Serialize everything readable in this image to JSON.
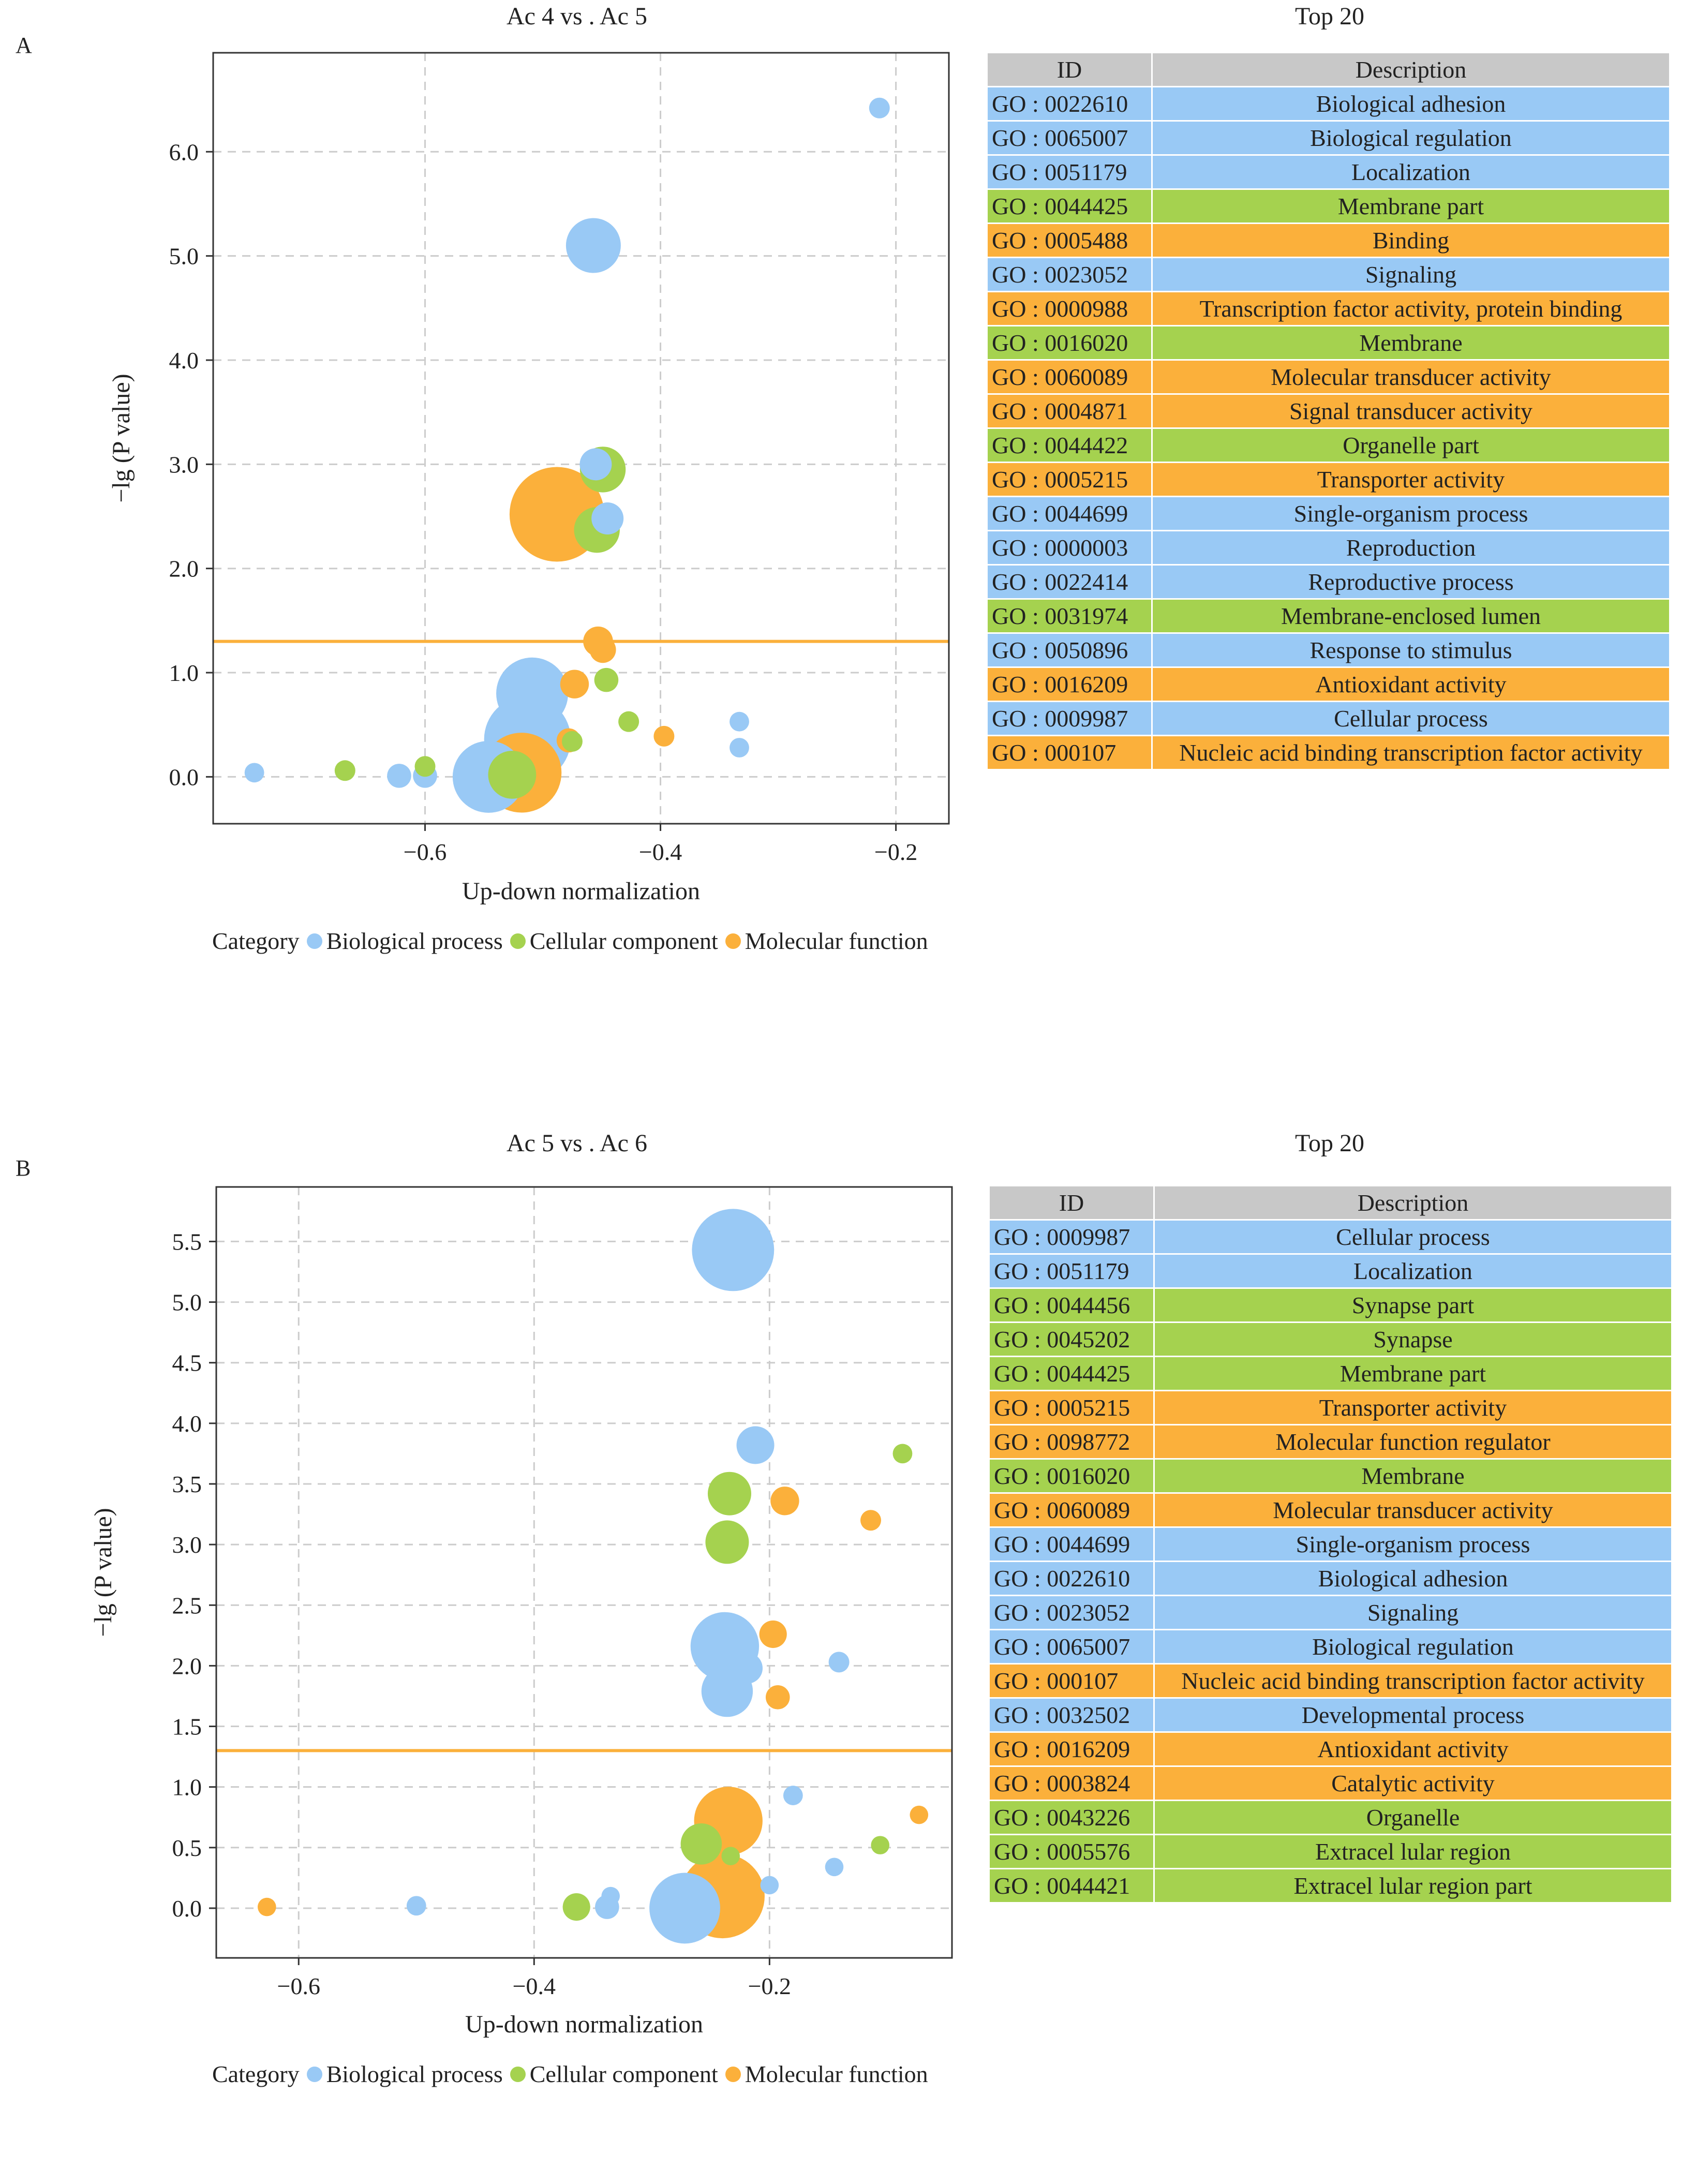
{
  "colors": {
    "Biological process": "#99c9f5",
    "Cellular component": "#a5d24f",
    "Molecular function": "#fbb03b",
    "threshold": "#fbb03b",
    "header": "#c8c8c8",
    "grid": "#cccccc"
  },
  "panels": [
    {
      "letter": "A",
      "title": "Ac 4  vs . Ac 5",
      "table_title": "Top  20",
      "table_header": {
        "id": "ID",
        "description": "Description"
      },
      "legend": {
        "label": "Category",
        "items": [
          "Biological process",
          "Cellular  component",
          "Molecular  function"
        ]
      },
      "table_rows": [
        {
          "id": "GO : 0022610",
          "description": "Biological  adhesion",
          "category": "Biological process"
        },
        {
          "id": "GO : 0065007",
          "description": "Biological  regulation",
          "category": "Biological process"
        },
        {
          "id": "GO : 0051179",
          "description": "Localization",
          "category": "Biological process"
        },
        {
          "id": "GO : 0044425",
          "description": "Membrane  part",
          "category": "Cellular component"
        },
        {
          "id": "GO : 0005488",
          "description": "Binding",
          "category": "Molecular function"
        },
        {
          "id": "GO : 0023052",
          "description": "Signaling",
          "category": "Biological process"
        },
        {
          "id": "GO : 0000988",
          "description": "Transcription  factor activity, protein  binding",
          "category": "Molecular function"
        },
        {
          "id": "GO : 0016020",
          "description": "Membrane",
          "category": "Cellular component"
        },
        {
          "id": "GO : 0060089",
          "description": "Molecular  transducer   activity",
          "category": "Molecular function"
        },
        {
          "id": "GO : 0004871",
          "description": "Signal  transducer  activity",
          "category": "Molecular function"
        },
        {
          "id": "GO : 0044422",
          "description": "Organelle  part",
          "category": "Cellular component"
        },
        {
          "id": "GO : 0005215",
          "description": "Transporter  activity",
          "category": "Molecular function"
        },
        {
          "id": "GO : 0044699",
          "description": "Single-organism  process",
          "category": "Biological process"
        },
        {
          "id": "GO : 0000003",
          "description": "Reproduction",
          "category": "Biological process"
        },
        {
          "id": "GO : 0022414",
          "description": "Reproductive  process",
          "category": "Biological process"
        },
        {
          "id": "GO : 0031974",
          "description": "Membrane-enclosed  lumen",
          "category": "Cellular component"
        },
        {
          "id": "GO : 0050896",
          "description": "Response  to  stimulus",
          "category": "Biological process"
        },
        {
          "id": "GO : 0016209",
          "description": "Antioxidant  activity",
          "category": "Molecular function"
        },
        {
          "id": "GO : 0009987",
          "description": "Cellular  process",
          "category": "Biological process"
        },
        {
          "id": "GO : 000107",
          "description": "Nucleic acid  binding  transcription  factor activity",
          "category": "Molecular function"
        }
      ],
      "chart_data": {
        "type": "scatter",
        "title": "Ac 4  vs . Ac 5",
        "xlabel": "Up-down   normalization",
        "ylabel": "−lg (P value)",
        "xlim": [
          -0.78,
          -0.155
        ],
        "ylim": [
          -0.45,
          6.95
        ],
        "xticks": [
          -0.6,
          -0.4,
          -0.2
        ],
        "xtick_labels": [
          "−0.6",
          "−0.4",
          "−0.2"
        ],
        "yticks": [
          0.0,
          1.0,
          2.0,
          3.0,
          4.0,
          5.0,
          6.0
        ],
        "ytick_labels": [
          "0.0",
          "1.0",
          "2.0",
          "3.0",
          "4.0",
          "5.0",
          "6.0"
        ],
        "threshold": 1.3,
        "grid": true,
        "size_unit": "relative bubble size",
        "points": [
          {
            "x": -0.214,
            "y": 6.42,
            "size": 1,
            "category": "Biological process"
          },
          {
            "x": -0.457,
            "y": 5.1,
            "size": 4,
            "category": "Biological process"
          },
          {
            "x": -0.455,
            "y": 3.0,
            "size": 2,
            "category": "Biological process"
          },
          {
            "x": -0.449,
            "y": 2.95,
            "size": 3.2,
            "category": "Cellular component"
          },
          {
            "x": -0.445,
            "y": 2.48,
            "size": 2,
            "category": "Biological process"
          },
          {
            "x": -0.488,
            "y": 2.52,
            "size": 7.5,
            "category": "Molecular function"
          },
          {
            "x": -0.454,
            "y": 2.37,
            "size": 3.2,
            "category": "Cellular component"
          },
          {
            "x": -0.453,
            "y": 1.3,
            "size": 1.8,
            "category": "Molecular function"
          },
          {
            "x": -0.449,
            "y": 1.22,
            "size": 1.5,
            "category": "Molecular function"
          },
          {
            "x": -0.473,
            "y": 0.89,
            "size": 1.7,
            "category": "Molecular function"
          },
          {
            "x": -0.446,
            "y": 0.93,
            "size": 1.3,
            "category": "Cellular component"
          },
          {
            "x": -0.427,
            "y": 0.53,
            "size": 1,
            "category": "Cellular component"
          },
          {
            "x": -0.397,
            "y": 0.39,
            "size": 1,
            "category": "Molecular function"
          },
          {
            "x": -0.333,
            "y": 0.53,
            "size": 0.9,
            "category": "Biological process"
          },
          {
            "x": -0.333,
            "y": 0.28,
            "size": 0.9,
            "category": "Biological process"
          },
          {
            "x": -0.509,
            "y": 0.8,
            "size": 5.5,
            "category": "Biological process"
          },
          {
            "x": -0.513,
            "y": 0.36,
            "size": 6.8,
            "category": "Biological process"
          },
          {
            "x": -0.478,
            "y": 0.35,
            "size": 1.3,
            "category": "Molecular function"
          },
          {
            "x": -0.475,
            "y": 0.34,
            "size": 1,
            "category": "Cellular component"
          },
          {
            "x": -0.518,
            "y": 0.04,
            "size": 6.2,
            "category": "Molecular function"
          },
          {
            "x": -0.526,
            "y": 0.02,
            "size": 3.4,
            "category": "Cellular component"
          },
          {
            "x": -0.546,
            "y": 0.0,
            "size": 5.5,
            "category": "Biological process"
          },
          {
            "x": -0.745,
            "y": 0.04,
            "size": 0.9,
            "category": "Biological process"
          },
          {
            "x": -0.668,
            "y": 0.06,
            "size": 1,
            "category": "Cellular component"
          },
          {
            "x": -0.622,
            "y": 0.01,
            "size": 1.3,
            "category": "Biological process"
          },
          {
            "x": -0.6,
            "y": 0.01,
            "size": 1.3,
            "category": "Biological process"
          },
          {
            "x": -0.6,
            "y": 0.1,
            "size": 1,
            "category": "Cellular component"
          }
        ]
      }
    },
    {
      "letter": "B",
      "title": "Ac 5  vs . Ac 6",
      "table_title": "Top  20",
      "table_header": {
        "id": "ID",
        "description": "Description"
      },
      "legend": {
        "label": "Category",
        "items": [
          "Biological process",
          "Cellular  component",
          "Molecular  function"
        ]
      },
      "table_rows": [
        {
          "id": "GO : 0009987",
          "description": "Cellular  process",
          "category": "Biological process"
        },
        {
          "id": "GO : 0051179",
          "description": "Localization",
          "category": "Biological process"
        },
        {
          "id": "GO : 0044456",
          "description": "Synapse  part",
          "category": "Cellular component"
        },
        {
          "id": "GO : 0045202",
          "description": "Synapse",
          "category": "Cellular component"
        },
        {
          "id": "GO : 0044425",
          "description": "Membrane  part",
          "category": "Cellular component"
        },
        {
          "id": "GO : 0005215",
          "description": "Transporter  activity",
          "category": "Molecular function"
        },
        {
          "id": "GO : 0098772",
          "description": "Molecular  function  regulator",
          "category": "Molecular function"
        },
        {
          "id": "GO : 0016020",
          "description": "Membrane",
          "category": "Cellular component"
        },
        {
          "id": "GO : 0060089",
          "description": "Molecular  transducer   activity",
          "category": "Molecular function"
        },
        {
          "id": "GO : 0044699",
          "description": "Single-organism  process",
          "category": "Biological process"
        },
        {
          "id": "GO : 0022610",
          "description": "Biological  adhesion",
          "category": "Biological process"
        },
        {
          "id": "GO : 0023052",
          "description": "Signaling",
          "category": "Biological process"
        },
        {
          "id": "GO : 0065007",
          "description": "Biological  regulation",
          "category": "Biological process"
        },
        {
          "id": "GO : 000107",
          "description": "Nucleic acid  binding  transcription  factor activity",
          "category": "Molecular function"
        },
        {
          "id": "GO : 0032502",
          "description": "Developmental  process",
          "category": "Biological process"
        },
        {
          "id": "GO : 0016209",
          "description": "Antioxidant  activity",
          "category": "Molecular function"
        },
        {
          "id": "GO : 0003824",
          "description": "Catalytic  activity",
          "category": "Molecular function"
        },
        {
          "id": "GO : 0043226",
          "description": "Organelle",
          "category": "Cellular component"
        },
        {
          "id": "GO : 0005576",
          "description": "Extracel lular  region",
          "category": "Cellular component"
        },
        {
          "id": "GO : 0044421",
          "description": "Extracel lular  region  part",
          "category": "Cellular component"
        }
      ],
      "chart_data": {
        "type": "scatter",
        "title": "Ac 5  vs . Ac 6",
        "xlabel": "Up-down   normalization",
        "ylabel": "−lg (P value)",
        "xlim": [
          -0.67,
          -0.045
        ],
        "ylim": [
          -0.41,
          5.95
        ],
        "xticks": [
          -0.6,
          -0.4,
          -0.2
        ],
        "xtick_labels": [
          "−0.6",
          "−0.4",
          "−0.2"
        ],
        "yticks": [
          0.0,
          0.5,
          1.0,
          1.5,
          2.0,
          2.5,
          3.0,
          3.5,
          4.0,
          4.5,
          5.0,
          5.5
        ],
        "ytick_labels": [
          "0.0",
          "0.5",
          "1.0",
          "1.5",
          "2.0",
          "2.5",
          "3.0",
          "3.5",
          "4.0",
          "4.5",
          "5.0",
          "5.5"
        ],
        "threshold": 1.3,
        "grid": true,
        "size_unit": "relative bubble size",
        "points": [
          {
            "x": -0.231,
            "y": 5.43,
            "size": 6.4,
            "category": "Biological process"
          },
          {
            "x": -0.212,
            "y": 3.82,
            "size": 2.5,
            "category": "Biological process"
          },
          {
            "x": -0.087,
            "y": 3.75,
            "size": 0.9,
            "category": "Cellular component"
          },
          {
            "x": -0.234,
            "y": 3.42,
            "size": 3,
            "category": "Cellular component"
          },
          {
            "x": -0.187,
            "y": 3.36,
            "size": 1.7,
            "category": "Molecular function"
          },
          {
            "x": -0.236,
            "y": 3.02,
            "size": 3,
            "category": "Cellular component"
          },
          {
            "x": -0.114,
            "y": 3.2,
            "size": 1,
            "category": "Molecular function"
          },
          {
            "x": -0.197,
            "y": 2.26,
            "size": 1.6,
            "category": "Molecular function"
          },
          {
            "x": -0.238,
            "y": 2.16,
            "size": 5.2,
            "category": "Biological process"
          },
          {
            "x": -0.219,
            "y": 1.98,
            "size": 1.9,
            "category": "Biological process"
          },
          {
            "x": -0.141,
            "y": 2.03,
            "size": 1,
            "category": "Biological process"
          },
          {
            "x": -0.236,
            "y": 1.79,
            "size": 3.7,
            "category": "Biological process"
          },
          {
            "x": -0.193,
            "y": 1.74,
            "size": 1.3,
            "category": "Molecular function"
          },
          {
            "x": -0.073,
            "y": 0.77,
            "size": 0.8,
            "category": "Molecular function"
          },
          {
            "x": -0.18,
            "y": 0.93,
            "size": 0.9,
            "category": "Biological process"
          },
          {
            "x": -0.235,
            "y": 0.72,
            "size": 5.2,
            "category": "Molecular function"
          },
          {
            "x": -0.258,
            "y": 0.53,
            "size": 2.8,
            "category": "Cellular component"
          },
          {
            "x": -0.106,
            "y": 0.52,
            "size": 0.8,
            "category": "Cellular component"
          },
          {
            "x": -0.233,
            "y": 0.43,
            "size": 0.8,
            "category": "Cellular component"
          },
          {
            "x": -0.145,
            "y": 0.34,
            "size": 0.8,
            "category": "Biological process"
          },
          {
            "x": -0.2,
            "y": 0.19,
            "size": 0.8,
            "category": "Biological process"
          },
          {
            "x": -0.24,
            "y": 0.1,
            "size": 6.6,
            "category": "Molecular function"
          },
          {
            "x": -0.272,
            "y": 0.0,
            "size": 5.4,
            "category": "Biological process"
          },
          {
            "x": -0.335,
            "y": 0.1,
            "size": 0.8,
            "category": "Biological process"
          },
          {
            "x": -0.338,
            "y": 0.01,
            "size": 1.3,
            "category": "Biological process"
          },
          {
            "x": -0.364,
            "y": 0.01,
            "size": 1.6,
            "category": "Cellular component"
          },
          {
            "x": -0.5,
            "y": 0.02,
            "size": 0.9,
            "category": "Biological process"
          },
          {
            "x": -0.627,
            "y": 0.01,
            "size": 0.8,
            "category": "Molecular function"
          }
        ]
      }
    }
  ]
}
